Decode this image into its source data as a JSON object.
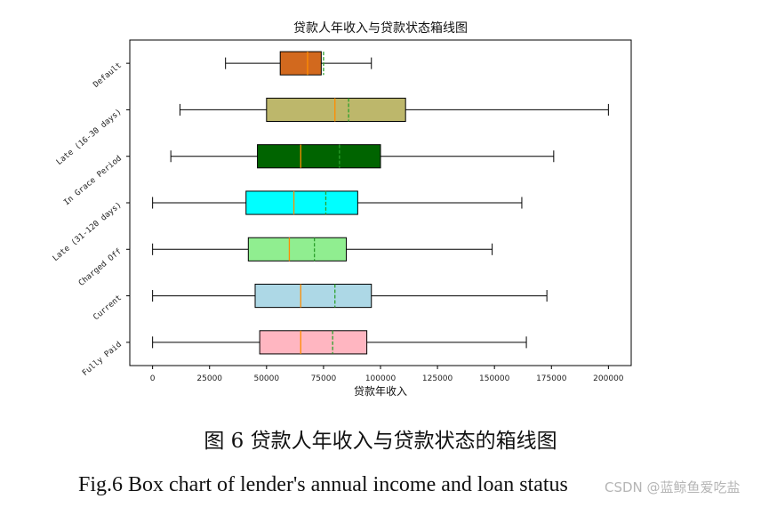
{
  "chart_data": {
    "type": "boxplot",
    "orientation": "horizontal",
    "title": "贷款人年收入与贷款状态箱线图",
    "xlabel": "贷款年收入",
    "ylabel": "",
    "xlim": [
      -10000,
      210000
    ],
    "xticks": [
      0,
      25000,
      50000,
      75000,
      100000,
      125000,
      150000,
      175000,
      200000
    ],
    "xtick_labels": [
      "0",
      "25000",
      "50000",
      "75000",
      "100000",
      "125000",
      "150000",
      "175000",
      "200000"
    ],
    "categories": [
      "Default",
      "Late (16-30 days)",
      "In Grace Period",
      "Late (31-120 days)",
      "Charged Off",
      "Current",
      "Fully Paid"
    ],
    "boxes": [
      {
        "label": "Default",
        "min": 32000,
        "q1": 56000,
        "median": 68000,
        "q3": 74000,
        "max": 96000,
        "mean": 75000,
        "color": "#D2691E"
      },
      {
        "label": "Late (16-30 days)",
        "min": 12000,
        "q1": 50000,
        "median": 80000,
        "q3": 111000,
        "max": 200000,
        "mean": 86000,
        "color": "#BDB76B"
      },
      {
        "label": "In Grace Period",
        "min": 8000,
        "q1": 46000,
        "median": 65000,
        "q3": 100000,
        "max": 176000,
        "mean": 82000,
        "color": "#006400"
      },
      {
        "label": "Late (31-120 days)",
        "min": 0,
        "q1": 41000,
        "median": 62000,
        "q3": 90000,
        "max": 162000,
        "mean": 76000,
        "color": "#00FFFF"
      },
      {
        "label": "Charged Off",
        "min": 0,
        "q1": 42000,
        "median": 60000,
        "q3": 85000,
        "max": 149000,
        "mean": 71000,
        "color": "#90EE90"
      },
      {
        "label": "Current",
        "min": 0,
        "q1": 45000,
        "median": 65000,
        "q3": 96000,
        "max": 173000,
        "mean": 80000,
        "color": "#ADD8E6"
      },
      {
        "label": "Fully Paid",
        "min": 0,
        "q1": 47000,
        "median": 65000,
        "q3": 94000,
        "max": 164000,
        "mean": 79000,
        "color": "#FFB6C1"
      }
    ],
    "median_color": "#FF8C00",
    "mean_color": "#2ca02c",
    "grid": false
  },
  "caption": {
    "chinese": "图 6 贷款人年收入与贷款状态的箱线图",
    "english": "Fig.6 Box chart of lender's annual income and loan status"
  },
  "watermark": "CSDN @蓝鲸鱼爱吃盐"
}
